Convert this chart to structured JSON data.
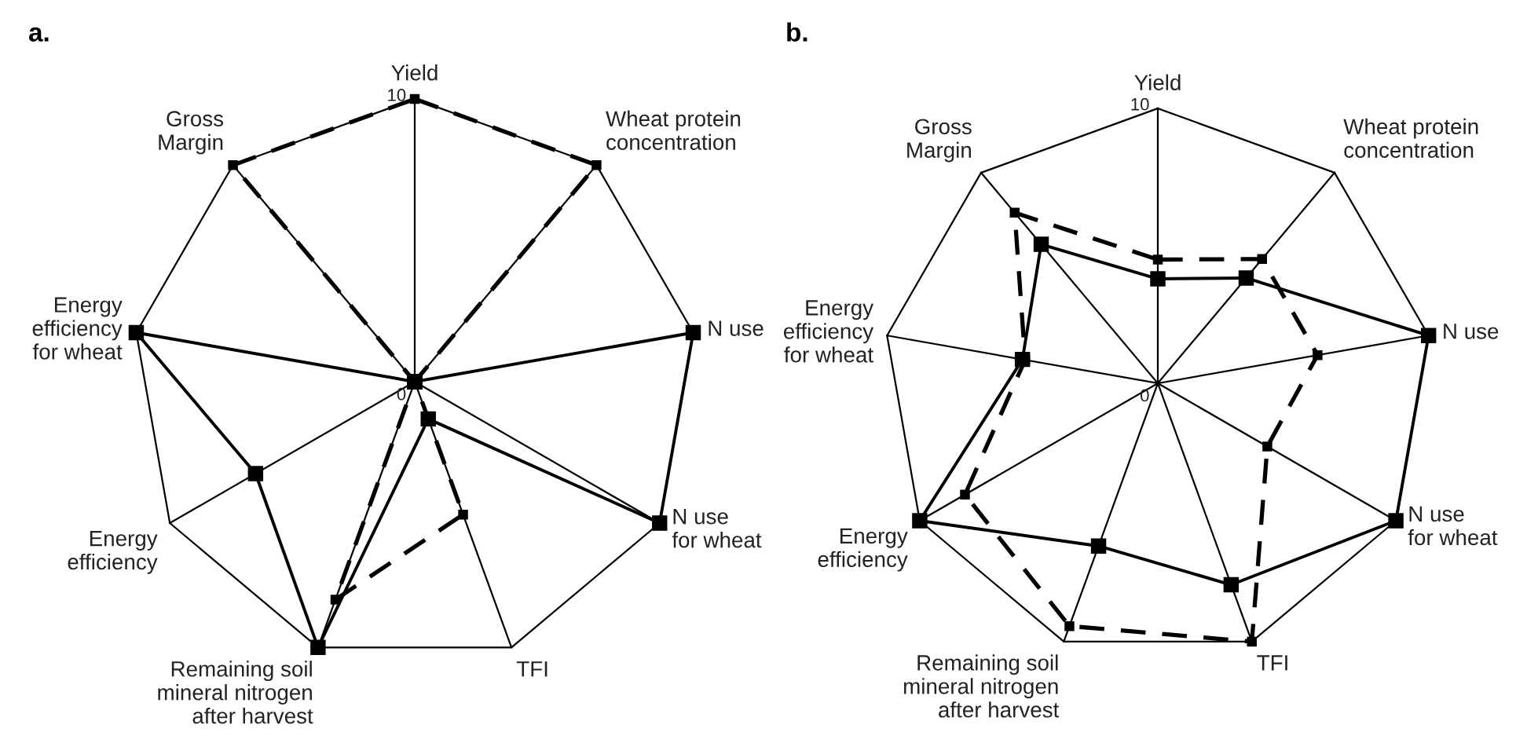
{
  "chart_data": [
    {
      "type": "radar",
      "title": "a.",
      "categories": [
        "Yield",
        "Wheat protein\nconcentration",
        "N use",
        "N use\nfor wheat",
        "TFI",
        "Remaining soil\nmineral nitrogen\nafter harvest",
        "Energy\nefficiency",
        "Energy\nefficiency\nfor wheat",
        "Gross\nMargin"
      ],
      "ylim": [
        0,
        10
      ],
      "yticks": [
        0,
        10
      ],
      "grid": true,
      "marker": "square",
      "series": [
        {
          "color": "#000000",
          "line_style": "solid",
          "values": [
            0,
            0,
            10,
            10,
            1.4,
            10,
            6.5,
            10,
            0
          ]
        },
        {
          "color": "#000000",
          "line_style": "dashed",
          "values": [
            10,
            10,
            0,
            0,
            5,
            8.2,
            0,
            0,
            10
          ]
        }
      ]
    },
    {
      "type": "radar",
      "title": "b.",
      "categories": [
        "Yield",
        "Wheat protein\nconcentration",
        "N use",
        "N use\nfor wheat",
        "TFI",
        "Remaining soil\nmineral nitrogen\nafter harvest",
        "Energy\nefficiency",
        "Energy\nefficiency\nfor wheat",
        "Gross\nMargin"
      ],
      "ylim": [
        0,
        10
      ],
      "yticks": [
        0,
        10
      ],
      "grid": true,
      "marker": "square",
      "series": [
        {
          "color": "#000000",
          "line_style": "solid",
          "values": [
            3.8,
            5.0,
            10,
            10,
            7.8,
            6.3,
            10,
            5.0,
            6.6
          ]
        },
        {
          "color": "#000000",
          "line_style": "dashed",
          "values": [
            4.5,
            5.9,
            5.9,
            4.6,
            10,
            9.4,
            8.1,
            4.9,
            8.1
          ]
        }
      ]
    }
  ]
}
